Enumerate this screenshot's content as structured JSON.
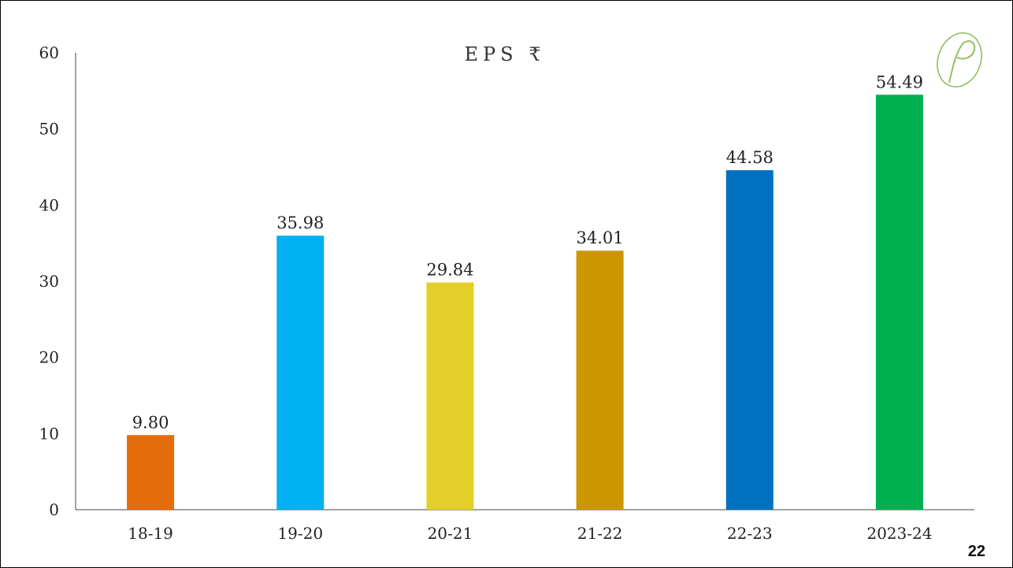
{
  "slide": {
    "page_number": "22",
    "logo_letter": "P",
    "logo_icon": "leaf-p-logo-icon",
    "logo_color": "#8dc063"
  },
  "chart_data": {
    "type": "bar",
    "title": "EPS ₹",
    "xlabel": "",
    "ylabel": "",
    "categories": [
      "18-19",
      "19-20",
      "20-21",
      "21-22",
      "22-23",
      "2023-24"
    ],
    "values": [
      9.8,
      35.98,
      29.84,
      34.01,
      44.58,
      54.49
    ],
    "value_labels": [
      "9.80",
      "35.98",
      "29.84",
      "34.01",
      "44.58",
      "54.49"
    ],
    "colors": [
      "#e46c0a",
      "#00b0f0",
      "#e3cf27",
      "#cc9600",
      "#0070c0",
      "#00b050"
    ],
    "ylim": [
      0,
      60
    ],
    "yticks": [
      0,
      10,
      20,
      30,
      40,
      50,
      60
    ],
    "grid": false,
    "legend": "none"
  }
}
